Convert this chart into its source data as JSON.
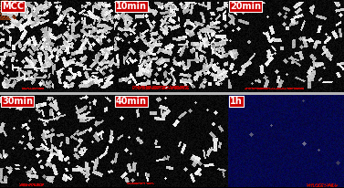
{
  "labels": [
    [
      "MCC",
      "10min",
      "20min"
    ],
    [
      "30min",
      "40min",
      "1h"
    ]
  ],
  "figsize": [
    3.77,
    2.06
  ],
  "dpi": 100,
  "panel_rows": 2,
  "panel_cols": 3,
  "label_bg_color": "#cc0000",
  "label_text_color": "#ffffff",
  "label_fontsize": 7,
  "divider_color": "#aaaaaa",
  "divider_thickness": 3,
  "seed": 42,
  "density_row0": [
    0.6,
    0.5,
    0.18
  ],
  "density_row1": [
    0.22,
    0.1,
    0.0
  ],
  "blue_bg_row1": [
    false,
    false,
    true
  ],
  "blue_color": [
    5,
    8,
    80
  ],
  "label_fontsize_mcc": 7,
  "red_strip": true
}
